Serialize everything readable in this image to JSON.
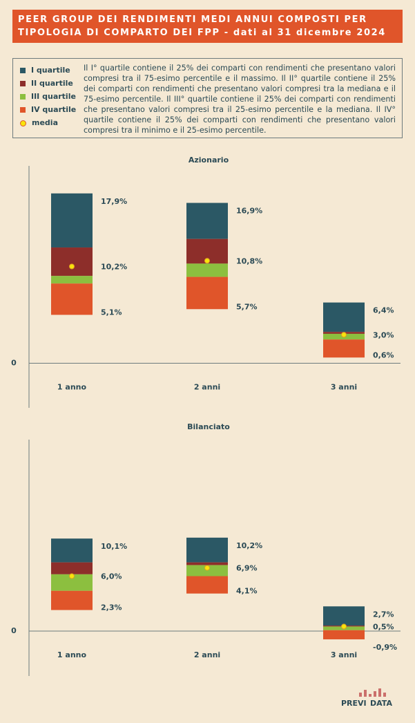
{
  "header": {
    "title": [
      "PEER GROUP DEI RENDIMENTI MEDI ANNUI COMPOSTI PER",
      "TIPOLOGIA DI COMPARTO DEI FPP - dati al 31 dicembre 2024"
    ]
  },
  "legend": [
    {
      "name": "I quartile",
      "color": "#2b5865"
    },
    {
      "name": "II quartile",
      "color": "#8d2e2a"
    },
    {
      "name": "III quartile",
      "color": "#8cbf3f"
    },
    {
      "name": "IV quartile",
      "color": "#e0552a"
    },
    {
      "name": "media",
      "color": "#f7e40c"
    }
  ],
  "description": "Il I° quartile contiene il 25% dei comparti con rendimenti che presentano valori compresi tra il 75-esimo percentile e il massimo. Il II° quartile contiene il 25% dei comparti con rendimenti che presentano valori compresi tra la mediana e il 75-esimo percentile. Il III° quartile contiene il 25% dei comparti con rendimenti che presentano valori compresi tra il 25-esimo percentile e la mediana. Il IV° quartile contiene il 25% dei comparti con rendimenti che presentano valori compresi tra il minimo e il 25-esimo percentile.",
  "chart_data": [
    {
      "type": "boxplot",
      "title": "Azionario",
      "categories": [
        "1 anno",
        "2 anni",
        "3 anni"
      ],
      "max": [
        17.9,
        16.9,
        6.4
      ],
      "q3": [
        12.2,
        13.1,
        3.3
      ],
      "median": [
        9.2,
        10.5,
        3.1
      ],
      "q1": [
        8.4,
        9.1,
        2.5
      ],
      "min": [
        5.1,
        5.7,
        0.6
      ],
      "mean": [
        10.2,
        10.8,
        3.0
      ],
      "value_labels": {
        "max": [
          "17,9%",
          "16,9%",
          "6,4%"
        ],
        "mean": [
          "10,2%",
          "10,8%",
          "3,0%"
        ],
        "min": [
          "5,1%",
          "5,7%",
          "0,6%"
        ]
      },
      "ylim": [
        -4.7,
        20.8
      ],
      "yticks": [
        0
      ]
    },
    {
      "type": "boxplot",
      "title": "Bilanciato",
      "categories": [
        "1 anno",
        "2 anni",
        "3 anni"
      ],
      "max": [
        10.1,
        10.2,
        2.7
      ],
      "q3": [
        7.5,
        7.5,
        0.6
      ],
      "median": [
        6.2,
        7.2,
        0.5
      ],
      "q1": [
        4.4,
        6.0,
        0.1
      ],
      "min": [
        2.3,
        4.1,
        -0.9
      ],
      "mean": [
        6.0,
        6.9,
        0.5
      ],
      "value_labels": {
        "max": [
          "10,1%",
          "10,2%",
          "2,7%"
        ],
        "mean": [
          "6,0%",
          "6,9%",
          "0,5%"
        ],
        "min": [
          "2,3%",
          "4,1%",
          "-0,9%"
        ]
      },
      "ylim": [
        -4.9,
        20.9
      ],
      "yticks": [
        0
      ]
    }
  ],
  "logo": [
    "PREVI",
    "DATA"
  ]
}
